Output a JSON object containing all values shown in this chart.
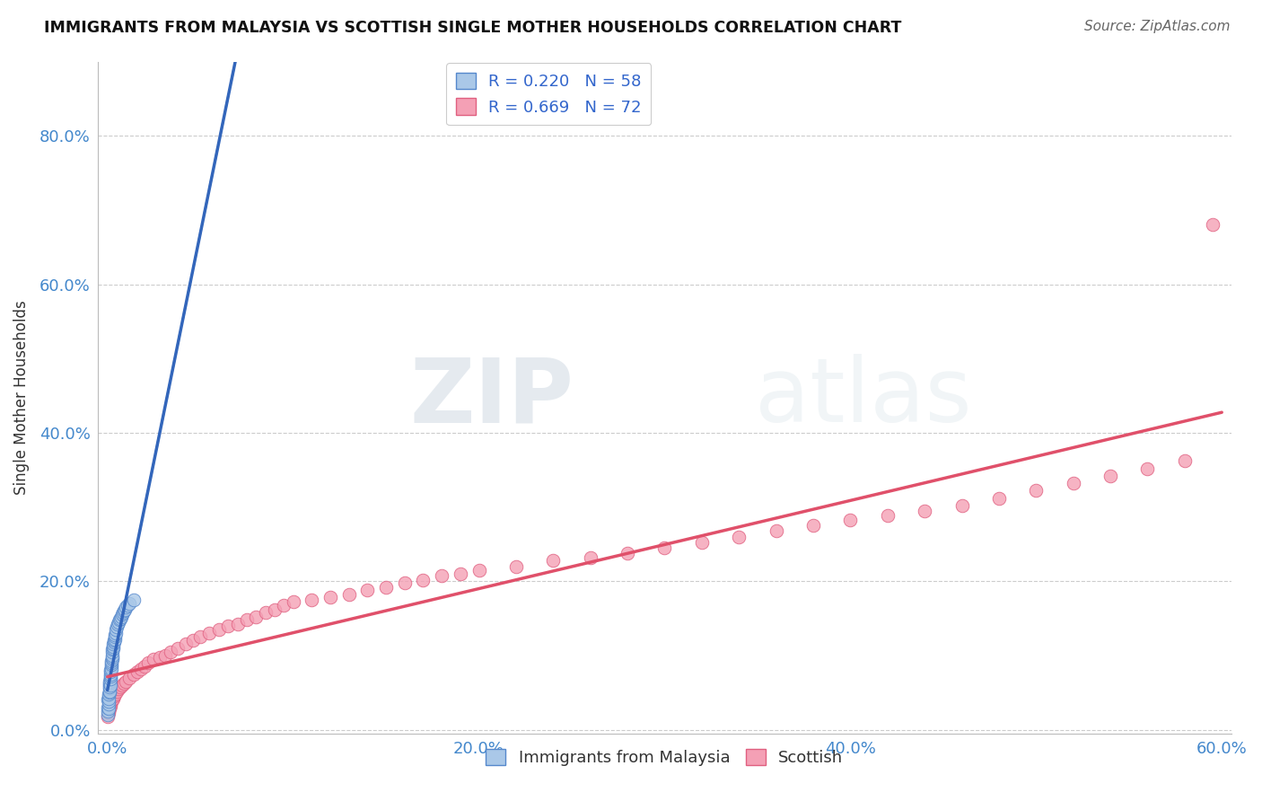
{
  "title": "IMMIGRANTS FROM MALAYSIA VS SCOTTISH SINGLE MOTHER HOUSEHOLDS CORRELATION CHART",
  "source": "Source: ZipAtlas.com",
  "ylabel": "Single Mother Households",
  "xlim": [
    -0.005,
    0.605
  ],
  "ylim": [
    -0.005,
    0.9
  ],
  "ytick_labels": [
    "0.0%",
    "20.0%",
    "40.0%",
    "60.0%",
    "80.0%"
  ],
  "ytick_vals": [
    0.0,
    0.2,
    0.4,
    0.6,
    0.8
  ],
  "xtick_labels": [
    "0.0%",
    "20.0%",
    "40.0%",
    "60.0%"
  ],
  "xtick_vals": [
    0.0,
    0.2,
    0.4,
    0.6
  ],
  "series1_color": "#aac8e8",
  "series2_color": "#f4a0b5",
  "series1_edge": "#5588cc",
  "series2_edge": "#e06080",
  "line1_color": "#3366bb",
  "line2_color": "#e0506a",
  "line1_dashed_color": "#88bbdd",
  "R1": 0.22,
  "N1": 58,
  "R2": 0.669,
  "N2": 72,
  "legend1_label": "Immigrants from Malaysia",
  "legend2_label": "Scottish",
  "watermark_zip": "ZIP",
  "watermark_atlas": "atlas",
  "background_color": "#ffffff",
  "series1_x": [
    0.0002,
    0.0003,
    0.0004,
    0.0004,
    0.0005,
    0.0005,
    0.0006,
    0.0007,
    0.0008,
    0.0008,
    0.0009,
    0.001,
    0.001,
    0.0011,
    0.0012,
    0.0012,
    0.0013,
    0.0014,
    0.0015,
    0.0015,
    0.0016,
    0.0017,
    0.0018,
    0.0018,
    0.0019,
    0.002,
    0.0021,
    0.0022,
    0.0023,
    0.0024,
    0.0025,
    0.0026,
    0.0027,
    0.0028,
    0.0029,
    0.003,
    0.0032,
    0.0034,
    0.0036,
    0.0038,
    0.004,
    0.0042,
    0.0044,
    0.0046,
    0.005,
    0.0055,
    0.006,
    0.0065,
    0.007,
    0.0075,
    0.008,
    0.0085,
    0.009,
    0.0095,
    0.01,
    0.011,
    0.012,
    0.014
  ],
  "series1_y": [
    0.02,
    0.025,
    0.03,
    0.04,
    0.028,
    0.045,
    0.035,
    0.038,
    0.042,
    0.048,
    0.05,
    0.055,
    0.06,
    0.052,
    0.058,
    0.062,
    0.065,
    0.07,
    0.06,
    0.068,
    0.072,
    0.075,
    0.078,
    0.08,
    0.085,
    0.082,
    0.088,
    0.09,
    0.092,
    0.095,
    0.098,
    0.1,
    0.105,
    0.108,
    0.11,
    0.112,
    0.115,
    0.118,
    0.12,
    0.122,
    0.125,
    0.128,
    0.13,
    0.135,
    0.138,
    0.142,
    0.145,
    0.148,
    0.15,
    0.152,
    0.155,
    0.158,
    0.16,
    0.162,
    0.165,
    0.168,
    0.17,
    0.175
  ],
  "series2_x": [
    0.0003,
    0.0005,
    0.0008,
    0.001,
    0.0012,
    0.0015,
    0.0018,
    0.002,
    0.0025,
    0.003,
    0.0035,
    0.004,
    0.005,
    0.006,
    0.007,
    0.008,
    0.009,
    0.01,
    0.012,
    0.014,
    0.016,
    0.018,
    0.02,
    0.022,
    0.025,
    0.028,
    0.031,
    0.034,
    0.038,
    0.042,
    0.046,
    0.05,
    0.055,
    0.06,
    0.065,
    0.07,
    0.075,
    0.08,
    0.085,
    0.09,
    0.095,
    0.1,
    0.11,
    0.12,
    0.13,
    0.14,
    0.15,
    0.16,
    0.17,
    0.18,
    0.19,
    0.2,
    0.22,
    0.24,
    0.26,
    0.28,
    0.3,
    0.32,
    0.34,
    0.36,
    0.38,
    0.4,
    0.42,
    0.44,
    0.46,
    0.48,
    0.5,
    0.52,
    0.54,
    0.56,
    0.58,
    0.595
  ],
  "series2_y": [
    0.018,
    0.022,
    0.025,
    0.028,
    0.03,
    0.032,
    0.035,
    0.038,
    0.04,
    0.042,
    0.045,
    0.048,
    0.052,
    0.055,
    0.058,
    0.06,
    0.062,
    0.065,
    0.07,
    0.075,
    0.078,
    0.082,
    0.085,
    0.09,
    0.095,
    0.098,
    0.1,
    0.105,
    0.11,
    0.115,
    0.12,
    0.125,
    0.13,
    0.135,
    0.14,
    0.142,
    0.148,
    0.152,
    0.158,
    0.162,
    0.168,
    0.172,
    0.175,
    0.178,
    0.182,
    0.188,
    0.192,
    0.198,
    0.202,
    0.208,
    0.21,
    0.215,
    0.22,
    0.228,
    0.232,
    0.238,
    0.245,
    0.252,
    0.26,
    0.268,
    0.275,
    0.282,
    0.288,
    0.295,
    0.302,
    0.312,
    0.322,
    0.332,
    0.342,
    0.352,
    0.362,
    0.68
  ],
  "line1_x_end": 0.095,
  "line2_x_end": 0.6,
  "line1_solid_x_end": 0.095,
  "line1_dashed_x_start": 0.0,
  "line1_dashed_x_end": 0.6
}
